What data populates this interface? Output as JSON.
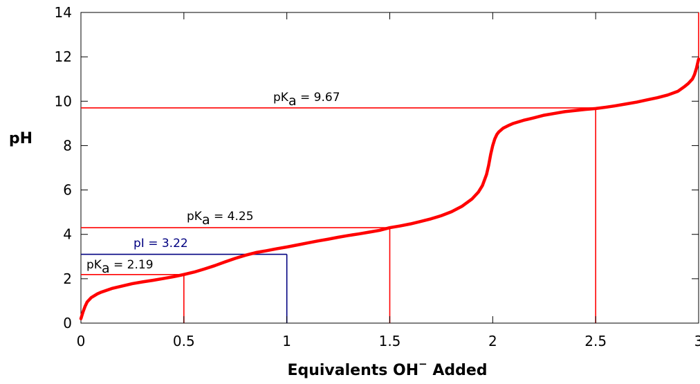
{
  "chart_data": {
    "type": "line",
    "title": "",
    "xlabel_main": "Equivalents OH",
    "xlabel_sup": "−",
    "xlabel_tail": " Added",
    "ylabel": "pH",
    "xlim": [
      0,
      3
    ],
    "ylim": [
      0,
      14
    ],
    "xticks": [
      0,
      0.5,
      1,
      1.5,
      2,
      2.5,
      3
    ],
    "xtick_labels": [
      "0",
      "0.5",
      "1",
      "1.5",
      "2",
      "2.5",
      "3"
    ],
    "yticks": [
      0,
      2,
      4,
      6,
      8,
      10,
      12,
      14
    ],
    "ytick_labels": [
      "0",
      "2",
      "4",
      "6",
      "8",
      "10",
      "12",
      "14"
    ],
    "grid": false,
    "series": [
      {
        "color": "#ff0000",
        "x": [
          0.0,
          0.01,
          0.02,
          0.03,
          0.05,
          0.08,
          0.1,
          0.15,
          0.2,
          0.25,
          0.3,
          0.35,
          0.4,
          0.45,
          0.5,
          0.55,
          0.6,
          0.65,
          0.7,
          0.75,
          0.8,
          0.85,
          0.9,
          0.95,
          1.0,
          1.05,
          1.1,
          1.15,
          1.2,
          1.25,
          1.3,
          1.35,
          1.4,
          1.45,
          1.5,
          1.55,
          1.6,
          1.65,
          1.7,
          1.75,
          1.8,
          1.85,
          1.9,
          1.93,
          1.95,
          1.97,
          1.98,
          1.99,
          2.0,
          2.01,
          2.02,
          2.03,
          2.05,
          2.08,
          2.1,
          2.15,
          2.2,
          2.25,
          2.3,
          2.35,
          2.4,
          2.45,
          2.5,
          2.55,
          2.6,
          2.65,
          2.7,
          2.75,
          2.8,
          2.85,
          2.9,
          2.93,
          2.95,
          2.97,
          2.98,
          2.99,
          3.0
        ],
        "y": [
          0.2,
          0.5,
          0.75,
          0.95,
          1.15,
          1.32,
          1.4,
          1.56,
          1.67,
          1.78,
          1.86,
          1.93,
          2.01,
          2.09,
          2.19,
          2.3,
          2.44,
          2.59,
          2.76,
          2.92,
          3.06,
          3.18,
          3.26,
          3.35,
          3.43,
          3.52,
          3.61,
          3.7,
          3.78,
          3.87,
          3.95,
          4.02,
          4.1,
          4.18,
          4.3,
          4.38,
          4.47,
          4.58,
          4.7,
          4.84,
          5.02,
          5.26,
          5.6,
          5.9,
          6.2,
          6.7,
          7.1,
          7.6,
          8.0,
          8.3,
          8.5,
          8.62,
          8.78,
          8.92,
          9.0,
          9.14,
          9.25,
          9.37,
          9.45,
          9.53,
          9.58,
          9.63,
          9.67,
          9.73,
          9.8,
          9.88,
          9.96,
          10.06,
          10.16,
          10.28,
          10.45,
          10.65,
          10.8,
          11.0,
          11.2,
          11.5,
          11.9
        ]
      }
    ],
    "annotations": [
      {
        "id": "pka3",
        "prefix": "pK",
        "sub": "a",
        "suffix": " = 9.67",
        "x_eq": 2.5,
        "y_ph": 9.7,
        "color": "#ff0000",
        "text_color": "#000000"
      },
      {
        "id": "pka2",
        "prefix": "pK",
        "sub": "a",
        "suffix": " = 4.25",
        "x_eq": 1.5,
        "y_ph": 4.3,
        "color": "#ff0000",
        "text_color": "#000000"
      },
      {
        "id": "pi",
        "prefix": "pI = 3.22",
        "sub": "",
        "suffix": "",
        "x_eq": 1.0,
        "y_ph": 3.1,
        "color": "#000080",
        "text_color": "#000080"
      },
      {
        "id": "pka1",
        "prefix": "pK",
        "sub": "a",
        "suffix": " = 2.19",
        "x_eq": 0.5,
        "y_ph": 2.19,
        "color": "#ff0000",
        "text_color": "#000000"
      }
    ],
    "right_edge_line": {
      "from_ph": 11.9,
      "to_ph": 14,
      "color": "#ff0000"
    }
  }
}
